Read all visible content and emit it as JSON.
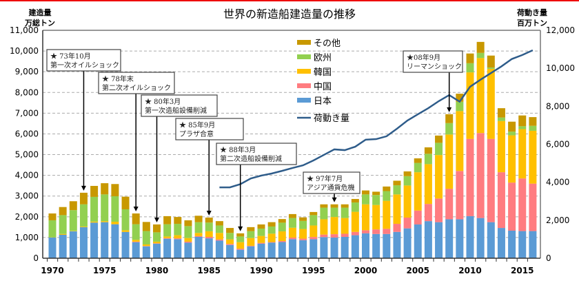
{
  "chart_data": {
    "type": "bar",
    "stacked": true,
    "title": "世界の新造船建造量の推移",
    "ylabel_left": [
      "建造量",
      "万総トン"
    ],
    "ylabel_right": [
      "荷動き量",
      "百万トン"
    ],
    "ylim_left": [
      0,
      11000
    ],
    "ylim_right": [
      0,
      12000
    ],
    "yticks_left": [
      "0",
      "1,000",
      "2,000",
      "3,000",
      "4,000",
      "5,000",
      "6,000",
      "7,000",
      "8,000",
      "9,000",
      "10,000",
      "11,000"
    ],
    "yticks_right": [
      "0",
      "2,000",
      "4,000",
      "6,000",
      "8,000",
      "10,000",
      "12,000"
    ],
    "xticks": [
      "1970",
      "1975",
      "1980",
      "1985",
      "1990",
      "1995",
      "2000",
      "2005",
      "2010",
      "2015"
    ],
    "grid": "horizontal dashed",
    "legend_position": "top-center",
    "years": [
      1970,
      1971,
      1972,
      1973,
      1974,
      1975,
      1976,
      1977,
      1978,
      1979,
      1980,
      1981,
      1982,
      1983,
      1984,
      1985,
      1986,
      1987,
      1988,
      1989,
      1990,
      1991,
      1992,
      1993,
      1994,
      1995,
      1996,
      1997,
      1998,
      1999,
      2000,
      2001,
      2002,
      2003,
      2004,
      2005,
      2006,
      2007,
      2008,
      2009,
      2010,
      2011,
      2012,
      2013,
      2014,
      2015,
      2016
    ],
    "series": [
      {
        "name": "日本",
        "color": "#5B9BD5",
        "values": [
          1000,
          1130,
          1300,
          1500,
          1720,
          1740,
          1640,
          1270,
          775,
          575,
          700,
          940,
          920,
          750,
          1030,
          960,
          850,
          640,
          410,
          575,
          700,
          755,
          780,
          920,
          870,
          920,
          1020,
          1000,
          1030,
          1110,
          1200,
          1170,
          1170,
          1270,
          1440,
          1630,
          1790,
          1740,
          1880,
          1880,
          2030,
          1940,
          1740,
          1460,
          1330,
          1310,
          1310
        ]
      },
      {
        "name": "中国",
        "color": "#FF7C80",
        "values": [
          0,
          0,
          0,
          0,
          0,
          0,
          0,
          0,
          25,
          15,
          20,
          30,
          40,
          50,
          40,
          70,
          55,
          50,
          50,
          25,
          40,
          25,
          50,
          75,
          75,
          105,
          120,
          160,
          150,
          160,
          150,
          220,
          250,
          390,
          520,
          670,
          830,
          1140,
          1470,
          2330,
          3730,
          4100,
          4020,
          2690,
          2320,
          2540,
          2290
        ]
      },
      {
        "name": "韓国",
        "color": "#FFC000",
        "values": [
          10,
          40,
          20,
          30,
          50,
          50,
          120,
          80,
          85,
          75,
          80,
          80,
          150,
          175,
          150,
          270,
          315,
          220,
          315,
          375,
          335,
          405,
          465,
          475,
          465,
          555,
          740,
          830,
          760,
          970,
          1250,
          1180,
          1350,
          1420,
          1550,
          1850,
          1920,
          2100,
          2620,
          2890,
          3210,
          3620,
          3380,
          2470,
          2280,
          2380,
          2550
        ]
      },
      {
        "name": "欧州",
        "color": "#92D050",
        "values": [
          820,
          910,
          1000,
          1070,
          1190,
          1290,
          1230,
          1010,
          755,
          645,
          450,
          590,
          550,
          575,
          520,
          420,
          360,
          310,
          275,
          330,
          355,
          345,
          420,
          470,
          390,
          500,
          560,
          450,
          500,
          450,
          480,
          480,
          470,
          440,
          450,
          450,
          500,
          590,
          550,
          450,
          440,
          250,
          60,
          170,
          180,
          140,
          240
        ]
      },
      {
        "name": "その他",
        "color": "#C89800",
        "values": [
          330,
          390,
          430,
          560,
          530,
          540,
          590,
          610,
          520,
          440,
          380,
          390,
          330,
          280,
          310,
          240,
          210,
          240,
          150,
          195,
          200,
          210,
          175,
          190,
          170,
          150,
          160,
          160,
          160,
          170,
          190,
          160,
          220,
          220,
          230,
          220,
          310,
          350,
          430,
          390,
          470,
          530,
          580,
          450,
          480,
          520,
          420
        ]
      }
    ],
    "line": {
      "name": "荷動き量",
      "axis": "right",
      "color": "#2E5C8A",
      "years": [
        1986,
        1987,
        1988,
        1989,
        1990,
        1991,
        1992,
        1993,
        1994,
        1995,
        1996,
        1997,
        1998,
        1999,
        2000,
        2001,
        2002,
        2003,
        2004,
        2005,
        2006,
        2007,
        2008,
        2009,
        2010,
        2011,
        2012,
        2013,
        2014,
        2015,
        2016
      ],
      "values": [
        3730,
        3730,
        3900,
        4200,
        4350,
        4460,
        4600,
        4750,
        4890,
        5150,
        5440,
        5730,
        5690,
        5870,
        6240,
        6270,
        6420,
        6820,
        7250,
        7580,
        7900,
        8270,
        8590,
        8240,
        9030,
        9400,
        9750,
        10100,
        10490,
        10700,
        10950
      ]
    },
    "annotations": [
      {
        "year": 1973,
        "date": "★ 73年10月",
        "event": "第一次オイルショック"
      },
      {
        "year": 1978,
        "date": "★ 78年末",
        "event": "第二次オイルショック"
      },
      {
        "year": 1980,
        "date": "★ 80年3月",
        "event": "第一次造船設備削減"
      },
      {
        "year": 1985,
        "date": "★ 85年9月",
        "event": "プラザ合意"
      },
      {
        "year": 1988,
        "date": "★ 88年3月",
        "event": "第二次造船設備削減"
      },
      {
        "year": 1997,
        "date": "★ 97年7月",
        "event": "アジア通貨危機"
      },
      {
        "year": 2008,
        "date": "★08年9月",
        "event": "リーマンショック"
      }
    ]
  }
}
